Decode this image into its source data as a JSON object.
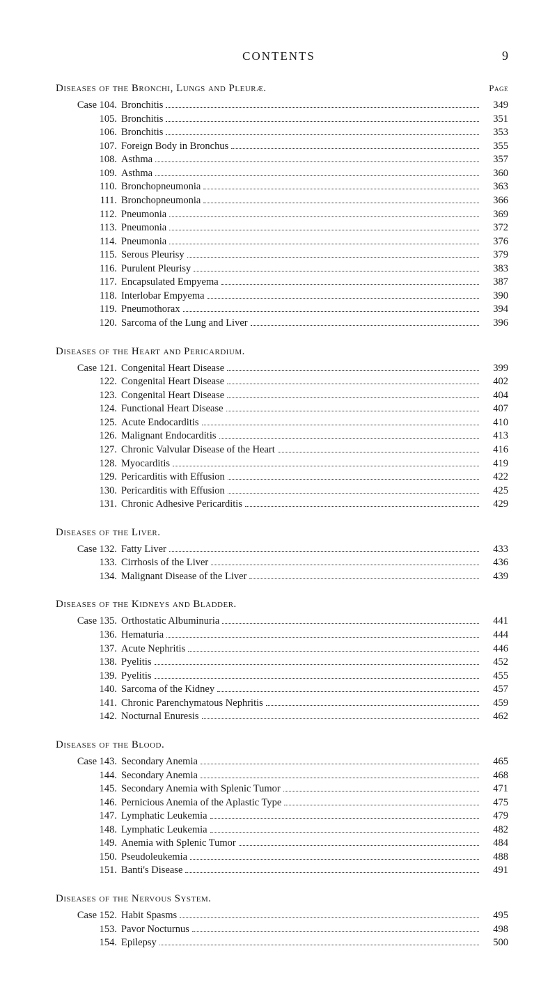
{
  "header": {
    "title": "CONTENTS",
    "page_number": "9",
    "page_label": "Page"
  },
  "typography": {
    "body_font": "Times New Roman",
    "body_size_pt": 11,
    "header_size_pt": 13,
    "text_color": "#1a1a1a",
    "background_color": "#ffffff",
    "dot_leader_color": "#333333"
  },
  "sections": [
    {
      "title": "Diseases of the Bronchi, Lungs and Pleuræ.",
      "case_prefix": "Case",
      "entries": [
        {
          "num": "104",
          "title": "Bronchitis",
          "page": "349"
        },
        {
          "num": "105",
          "title": "Bronchitis",
          "page": "351"
        },
        {
          "num": "106",
          "title": "Bronchitis",
          "page": "353"
        },
        {
          "num": "107",
          "title": "Foreign Body in Bronchus",
          "page": "355"
        },
        {
          "num": "108",
          "title": "Asthma",
          "page": "357"
        },
        {
          "num": "109",
          "title": "Asthma",
          "page": "360"
        },
        {
          "num": "110",
          "title": "Bronchopneumonia",
          "page": "363"
        },
        {
          "num": "111",
          "title": "Bronchopneumonia",
          "page": "366"
        },
        {
          "num": "112",
          "title": "Pneumonia",
          "page": "369"
        },
        {
          "num": "113",
          "title": "Pneumonia",
          "page": "372"
        },
        {
          "num": "114",
          "title": "Pneumonia",
          "page": "376"
        },
        {
          "num": "115",
          "title": "Serous Pleurisy",
          "page": "379"
        },
        {
          "num": "116",
          "title": "Purulent Pleurisy",
          "page": "383"
        },
        {
          "num": "117",
          "title": "Encapsulated Empyema",
          "page": "387"
        },
        {
          "num": "118",
          "title": "Interlobar Empyema",
          "page": "390"
        },
        {
          "num": "119",
          "title": "Pneumothorax",
          "page": "394"
        },
        {
          "num": "120",
          "title": "Sarcoma of the Lung and Liver",
          "page": "396"
        }
      ]
    },
    {
      "title": "Diseases of the Heart and Pericardium.",
      "case_prefix": "Case",
      "entries": [
        {
          "num": "121",
          "title": "Congenital Heart Disease",
          "page": "399"
        },
        {
          "num": "122",
          "title": "Congenital Heart Disease",
          "page": "402"
        },
        {
          "num": "123",
          "title": "Congenital Heart Disease",
          "page": "404"
        },
        {
          "num": "124",
          "title": "Functional Heart Disease",
          "page": "407"
        },
        {
          "num": "125",
          "title": "Acute Endocarditis",
          "page": "410"
        },
        {
          "num": "126",
          "title": "Malignant Endocarditis",
          "page": "413"
        },
        {
          "num": "127",
          "title": "Chronic Valvular Disease of the Heart",
          "page": "416"
        },
        {
          "num": "128",
          "title": "Myocarditis",
          "page": "419"
        },
        {
          "num": "129",
          "title": "Pericarditis with Effusion",
          "page": "422"
        },
        {
          "num": "130",
          "title": "Pericarditis with Effusion",
          "page": "425"
        },
        {
          "num": "131",
          "title": "Chronic Adhesive Pericarditis",
          "page": "429"
        }
      ]
    },
    {
      "title": "Diseases of the Liver.",
      "case_prefix": "Case",
      "entries": [
        {
          "num": "132",
          "title": "Fatty Liver",
          "page": "433"
        },
        {
          "num": "133",
          "title": "Cirrhosis of the Liver",
          "page": "436"
        },
        {
          "num": "134",
          "title": "Malignant Disease of the Liver",
          "page": "439"
        }
      ]
    },
    {
      "title": "Diseases of the Kidneys and Bladder.",
      "case_prefix": "Case",
      "entries": [
        {
          "num": "135",
          "title": "Orthostatic Albuminuria",
          "page": "441"
        },
        {
          "num": "136",
          "title": "Hematuria",
          "page": "444"
        },
        {
          "num": "137",
          "title": "Acute Nephritis",
          "page": "446"
        },
        {
          "num": "138",
          "title": "Pyelitis",
          "page": "452"
        },
        {
          "num": "139",
          "title": "Pyelitis",
          "page": "455"
        },
        {
          "num": "140",
          "title": "Sarcoma of the Kidney",
          "page": "457"
        },
        {
          "num": "141",
          "title": "Chronic Parenchymatous Nephritis",
          "page": "459"
        },
        {
          "num": "142",
          "title": "Nocturnal Enuresis",
          "page": "462"
        }
      ]
    },
    {
      "title": "Diseases of the Blood.",
      "case_prefix": "Case",
      "entries": [
        {
          "num": "143",
          "title": "Secondary Anemia",
          "page": "465"
        },
        {
          "num": "144",
          "title": "Secondary Anemia",
          "page": "468"
        },
        {
          "num": "145",
          "title": "Secondary Anemia with Splenic Tumor",
          "page": "471"
        },
        {
          "num": "146",
          "title": "Pernicious Anemia of the Aplastic Type",
          "page": "475"
        },
        {
          "num": "147",
          "title": "Lymphatic Leukemia",
          "page": "479"
        },
        {
          "num": "148",
          "title": "Lymphatic Leukemia",
          "page": "482"
        },
        {
          "num": "149",
          "title": "Anemia with Splenic Tumor",
          "page": "484"
        },
        {
          "num": "150",
          "title": "Pseudoleukemia",
          "page": "488"
        },
        {
          "num": "151",
          "title": "Banti's Disease",
          "page": "491"
        }
      ]
    },
    {
      "title": "Diseases of the Nervous System.",
      "case_prefix": "Case",
      "entries": [
        {
          "num": "152",
          "title": "Habit Spasms",
          "page": "495"
        },
        {
          "num": "153",
          "title": "Pavor Nocturnus",
          "page": "498"
        },
        {
          "num": "154",
          "title": "Epilepsy",
          "page": "500"
        }
      ]
    }
  ]
}
